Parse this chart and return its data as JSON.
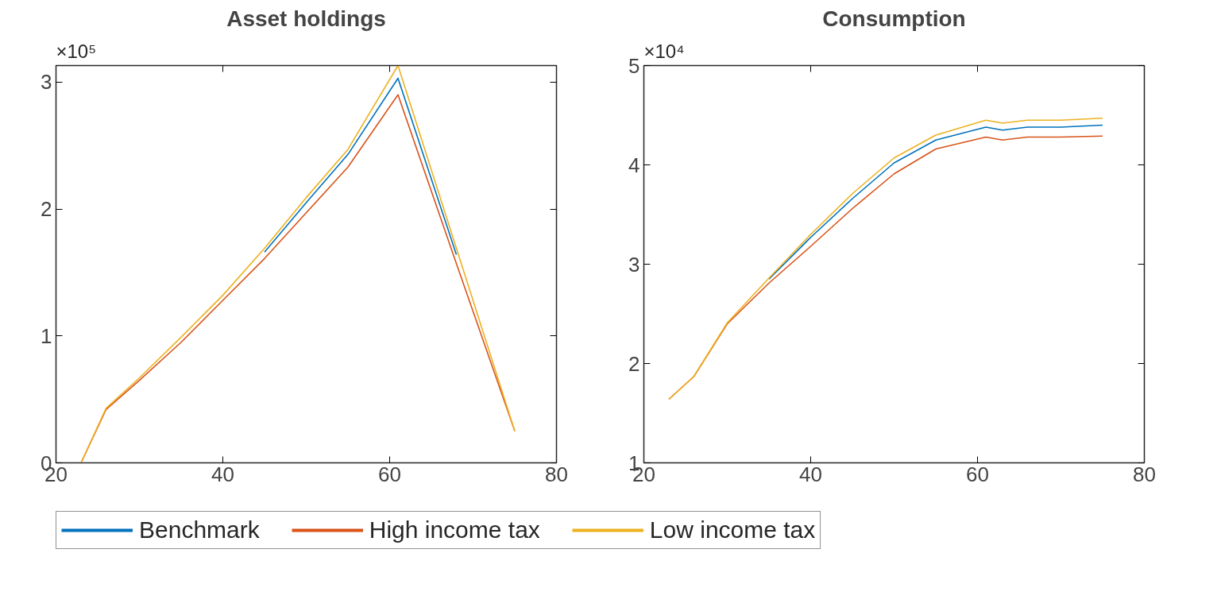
{
  "chart_data": [
    {
      "type": "line",
      "title": "Asset holdings",
      "annotations": [
        "×10⁵"
      ],
      "xlim": [
        20,
        80
      ],
      "xticks": [
        20,
        40,
        60,
        80
      ],
      "ylim": [
        0,
        3.13
      ],
      "yticks": [
        0,
        1,
        2,
        3
      ],
      "grid": false,
      "legend": "bottom",
      "x": [
        23,
        26,
        30,
        35,
        40,
        45,
        50,
        55,
        61,
        68,
        75
      ],
      "series": [
        {
          "name": "Benchmark",
          "color": "#0072bd",
          "values": [
            null,
            null,
            null,
            null,
            null,
            1.66,
            2.05,
            2.43,
            3.03,
            1.64,
            null
          ]
        },
        {
          "name": "High income tax",
          "color": "#d95319",
          "values": [
            0,
            0.42,
            0.65,
            0.95,
            1.28,
            1.61,
            1.97,
            2.33,
            2.9,
            1.57,
            0.25
          ]
        },
        {
          "name": "Low income tax",
          "color": "#edb120",
          "values": [
            0,
            0.43,
            0.67,
            0.99,
            1.32,
            1.69,
            2.09,
            2.47,
            3.13,
            1.69,
            0.25
          ]
        }
      ]
    },
    {
      "type": "line",
      "title": "Consumption",
      "annotations": [
        "×10⁴"
      ],
      "xlim": [
        20,
        80
      ],
      "xticks": [
        20,
        40,
        60,
        80
      ],
      "ylim": [
        1,
        5
      ],
      "yticks": [
        1,
        2,
        3,
        4,
        5
      ],
      "grid": false,
      "x": [
        23,
        26,
        30,
        35,
        40,
        45,
        50,
        55,
        61,
        63,
        66,
        70,
        75
      ],
      "series": [
        {
          "color": "#0072bd",
          "values": [
            null,
            null,
            null,
            2.85,
            3.27,
            3.66,
            4.02,
            4.25,
            4.38,
            4.35,
            4.38,
            4.38,
            4.4
          ]
        },
        {
          "color": "#d95319",
          "values": [
            1.64,
            1.87,
            2.4,
            2.81,
            3.18,
            3.56,
            3.91,
            4.16,
            4.28,
            4.25,
            4.28,
            4.28,
            4.29
          ]
        },
        {
          "color": "#edb120",
          "values": [
            1.64,
            1.87,
            2.41,
            2.86,
            3.3,
            3.71,
            4.07,
            4.3,
            4.45,
            4.42,
            4.45,
            4.45,
            4.47
          ]
        }
      ]
    }
  ]
}
